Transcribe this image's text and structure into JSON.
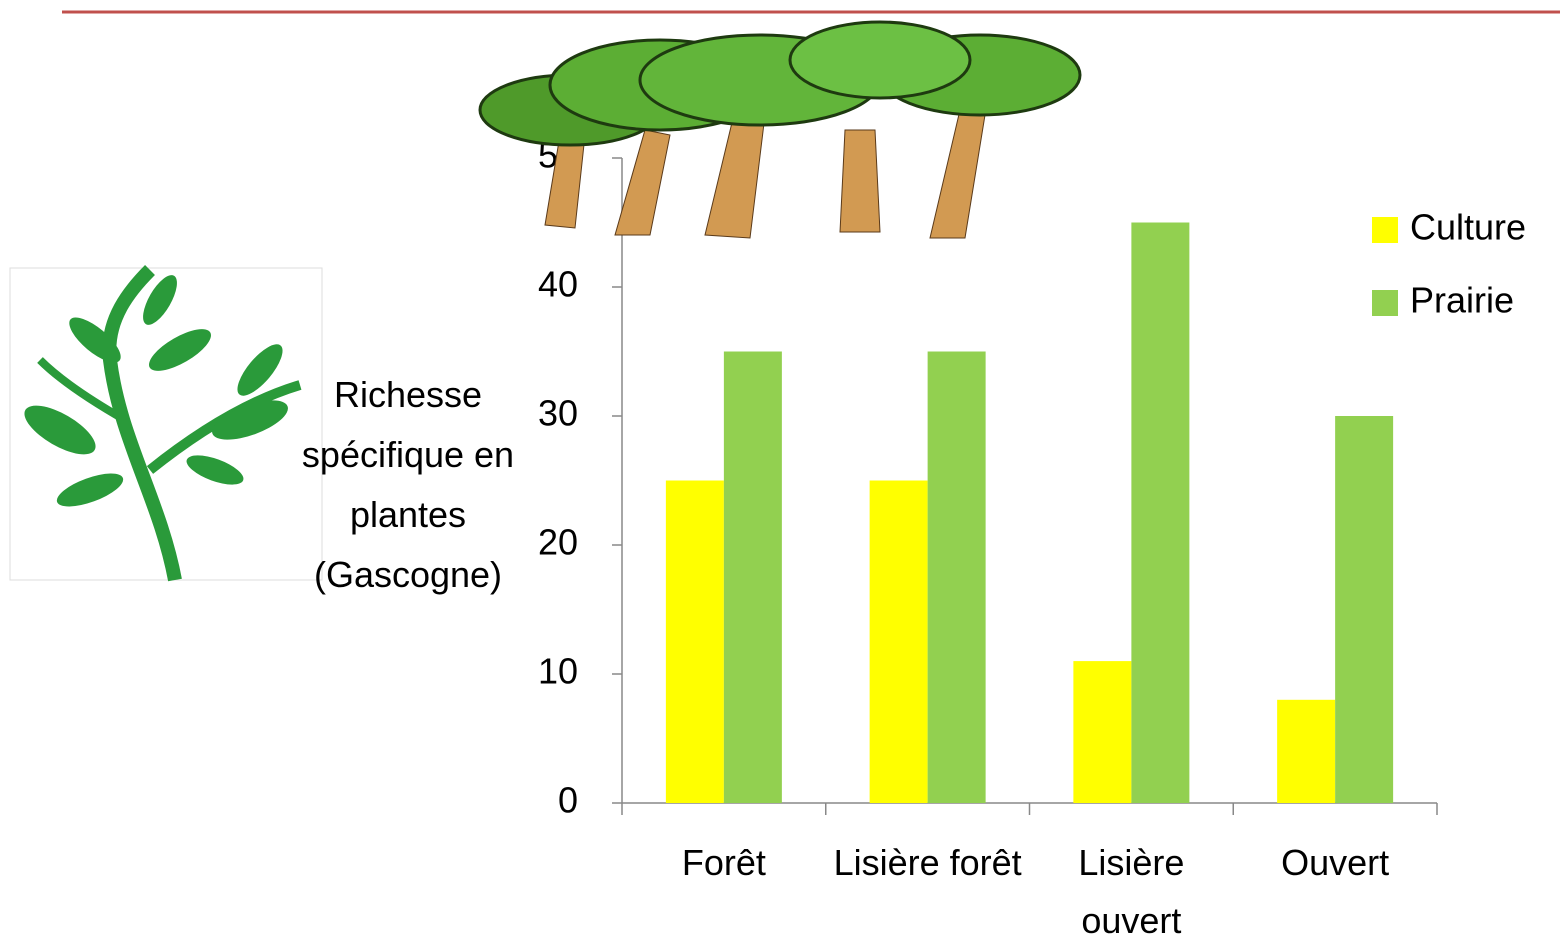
{
  "chart_data": {
    "type": "bar",
    "y_label": "Richesse spécifique en plantes (Gascogne)",
    "categories": [
      "Forêt",
      "Lisière forêt",
      "Lisière ouvert",
      "Ouvert"
    ],
    "series": [
      {
        "name": "Culture",
        "color": "#ffff00",
        "values": [
          25,
          25,
          11,
          8
        ]
      },
      {
        "name": "Prairie",
        "color": "#92d050",
        "values": [
          35,
          35,
          45,
          30
        ]
      }
    ],
    "ylim": [
      0,
      50
    ],
    "yticks": [
      0,
      10,
      20,
      30,
      40,
      50
    ],
    "legend": "right"
  }
}
